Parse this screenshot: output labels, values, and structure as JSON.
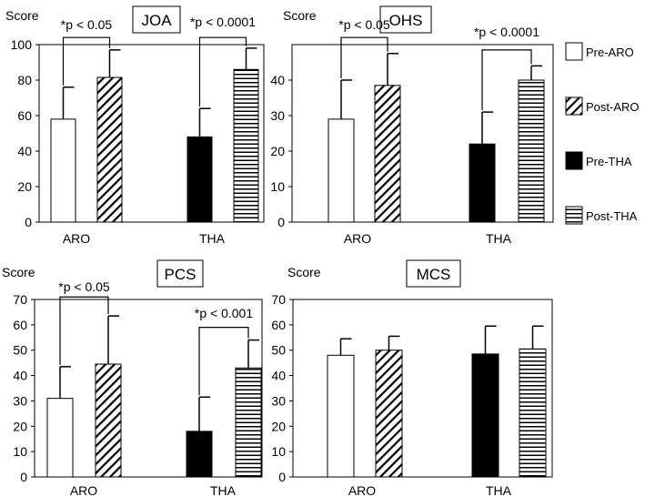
{
  "legend": {
    "items": [
      {
        "label": "Pre-ARO",
        "pattern": "white"
      },
      {
        "label": "Post-ARO",
        "pattern": "diag"
      },
      {
        "label": "Pre-THA",
        "pattern": "black"
      },
      {
        "label": "Post-THA",
        "pattern": "horiz"
      }
    ]
  },
  "chart_data": [
    {
      "type": "bar",
      "title": "JOA",
      "ylabel": "Score",
      "xlabel": "",
      "ylim": [
        0,
        100
      ],
      "yticks": [
        "0",
        "20",
        "40",
        "60",
        "80",
        "100"
      ],
      "categories": [
        "ARO",
        "THA"
      ],
      "series": [
        {
          "name": "Pre-ARO",
          "category": "ARO",
          "value": 58,
          "error": 18
        },
        {
          "name": "Post-ARO",
          "category": "ARO",
          "value": 81.5,
          "error": 15.5
        },
        {
          "name": "Pre-THA",
          "category": "THA",
          "value": 48,
          "error": 16
        },
        {
          "name": "Post-THA",
          "category": "THA",
          "value": 86,
          "error": 12
        }
      ],
      "annotations": [
        {
          "text": "*p < 0.05",
          "between": [
            "Pre-ARO",
            "Post-ARO"
          ],
          "level": 104
        },
        {
          "text": "*p < 0.0001",
          "between": [
            "Pre-THA",
            "Post-THA"
          ],
          "level": 104
        }
      ]
    },
    {
      "type": "bar",
      "title": "OHS",
      "ylabel": "Score",
      "xlabel": "",
      "ylim": [
        0,
        50
      ],
      "yticks": [
        "0",
        "10",
        "20",
        "30",
        "40"
      ],
      "categories": [
        "ARO",
        "THA"
      ],
      "series": [
        {
          "name": "Pre-ARO",
          "category": "ARO",
          "value": 29,
          "error": 11
        },
        {
          "name": "Post-ARO",
          "category": "ARO",
          "value": 38.5,
          "error": 9
        },
        {
          "name": "Pre-THA",
          "category": "THA",
          "value": 22,
          "error": 9
        },
        {
          "name": "Post-THA",
          "category": "THA",
          "value": 40,
          "error": 4
        }
      ],
      "annotations": [
        {
          "text": "*p < 0.05",
          "between": [
            "Pre-ARO",
            "Post-ARO"
          ],
          "level": 52
        },
        {
          "text": "*p < 0.0001",
          "between": [
            "Pre-THA",
            "Post-THA"
          ],
          "level": 48.5
        }
      ]
    },
    {
      "type": "bar",
      "title": "PCS",
      "ylabel": "Score",
      "xlabel": "",
      "ylim": [
        0,
        70
      ],
      "yticks": [
        "0",
        "10",
        "20",
        "30",
        "40",
        "50",
        "60",
        "70"
      ],
      "categories": [
        "ARO",
        "THA"
      ],
      "series": [
        {
          "name": "Pre-ARO",
          "category": "ARO",
          "value": 31,
          "error": 12.5
        },
        {
          "name": "Post-ARO",
          "category": "ARO",
          "value": 44.5,
          "error": 19
        },
        {
          "name": "Pre-THA",
          "category": "THA",
          "value": 18,
          "error": 13.5
        },
        {
          "name": "Post-THA",
          "category": "THA",
          "value": 43,
          "error": 11
        }
      ],
      "annotations": [
        {
          "text": "*p < 0.05",
          "between": [
            "Pre-ARO",
            "Post-ARO"
          ],
          "level": 71
        },
        {
          "text": "*p < 0.001",
          "between": [
            "Pre-THA",
            "Post-THA"
          ],
          "level": 59
        }
      ]
    },
    {
      "type": "bar",
      "title": "MCS",
      "ylabel": "Score",
      "xlabel": "",
      "ylim": [
        0,
        70
      ],
      "yticks": [
        "0",
        "10",
        "20",
        "30",
        "40",
        "50",
        "60",
        "70"
      ],
      "categories": [
        "ARO",
        "THA"
      ],
      "series": [
        {
          "name": "Pre-ARO",
          "category": "ARO",
          "value": 48,
          "error": 6.5
        },
        {
          "name": "Post-ARO",
          "category": "ARO",
          "value": 50,
          "error": 5.5
        },
        {
          "name": "Pre-THA",
          "category": "THA",
          "value": 48.5,
          "error": 11
        },
        {
          "name": "Post-THA",
          "category": "THA",
          "value": 50.5,
          "error": 9
        }
      ],
      "annotations": []
    }
  ]
}
